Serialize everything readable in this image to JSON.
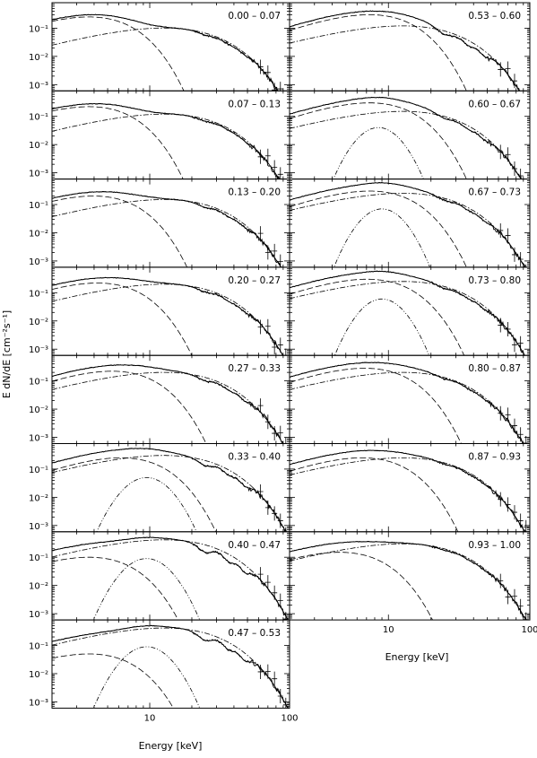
{
  "chart_data": {
    "type": "line",
    "ylabel": "E dN/dE [cm⁻²s⁻¹]",
    "xlabel": "Energy [keV]",
    "xscale": "log",
    "yscale": "log",
    "xlim": [
      2,
      100
    ],
    "ylim": [
      0.0006,
      0.8
    ],
    "x_ticklabels": [
      "10",
      "100"
    ],
    "y_ticklabels": [
      "10⁻³",
      "10⁻²",
      "10⁻¹"
    ],
    "panels": [
      {
        "label": "0.00 – 0.07",
        "bb_kT": 1.3,
        "bb_norm": 0.25,
        "pl_peak": 11,
        "pl_norm": 0.1,
        "gauss": null,
        "cyc": 0.15
      },
      {
        "label": "0.07 – 0.13",
        "bb_kT": 1.3,
        "bb_norm": 0.22,
        "pl_peak": 13,
        "pl_norm": 0.12,
        "gauss": null,
        "cyc": 0.15
      },
      {
        "label": "0.13 – 0.20",
        "bb_kT": 1.4,
        "bb_norm": 0.2,
        "pl_peak": 13,
        "pl_norm": 0.15,
        "gauss": null,
        "cyc": 0.2
      },
      {
        "label": "0.20 – 0.27",
        "bb_kT": 1.5,
        "bb_norm": 0.22,
        "pl_peak": 12,
        "pl_norm": 0.2,
        "gauss": null,
        "cyc": 0.2
      },
      {
        "label": "0.27 – 0.33",
        "bb_kT": 1.9,
        "bb_norm": 0.22,
        "pl_peak": 12,
        "pl_norm": 0.2,
        "gauss": null,
        "cyc": 0.25
      },
      {
        "label": "0.33 – 0.40",
        "bb_kT": 2.2,
        "bb_norm": 0.25,
        "pl_peak": 11,
        "pl_norm": 0.3,
        "gauss": {
          "center": 9.5,
          "sigma": 0.12,
          "norm": 0.05
        },
        "cyc": 0.35
      },
      {
        "label": "0.40 – 0.47",
        "bb_kT": 1.3,
        "bb_norm": 0.1,
        "pl_peak": 10,
        "pl_norm": 0.4,
        "gauss": {
          "center": 9.5,
          "sigma": 0.12,
          "norm": 0.09
        },
        "cyc": 0.45
      },
      {
        "label": "0.47 – 0.53",
        "bb_kT": 1.3,
        "bb_norm": 0.05,
        "pl_peak": 10,
        "pl_norm": 0.4,
        "gauss": {
          "center": 9.5,
          "sigma": 0.12,
          "norm": 0.09
        },
        "cyc": 0.45
      },
      {
        "label": "0.53 – 0.60",
        "bb_kT": 2.6,
        "bb_norm": 0.3,
        "pl_peak": 12,
        "pl_norm": 0.12,
        "gauss": null,
        "cyc": 0.35
      },
      {
        "label": "0.60 – 0.67",
        "bb_kT": 2.6,
        "bb_norm": 0.3,
        "pl_peak": 12,
        "pl_norm": 0.15,
        "gauss": {
          "center": 8.5,
          "sigma": 0.11,
          "norm": 0.04
        },
        "cyc": 0.25
      },
      {
        "label": "0.67 – 0.73",
        "bb_kT": 2.6,
        "bb_norm": 0.3,
        "pl_peak": 12,
        "pl_norm": 0.25,
        "gauss": {
          "center": 9.0,
          "sigma": 0.11,
          "norm": 0.07
        },
        "cyc": 0.2
      },
      {
        "label": "0.73 – 0.80",
        "bb_kT": 2.5,
        "bb_norm": 0.3,
        "pl_peak": 12,
        "pl_norm": 0.25,
        "gauss": {
          "center": 9.0,
          "sigma": 0.11,
          "norm": 0.06
        },
        "cyc": 0.2
      },
      {
        "label": "0.80 – 0.87",
        "bb_kT": 2.4,
        "bb_norm": 0.28,
        "pl_peak": 13,
        "pl_norm": 0.2,
        "gauss": null,
        "cyc": 0.15
      },
      {
        "label": "0.87 – 0.93",
        "bb_kT": 2.3,
        "bb_norm": 0.25,
        "pl_peak": 12,
        "pl_norm": 0.25,
        "gauss": null,
        "cyc": 0.12
      },
      {
        "label": "0.93 – 1.00",
        "bb_kT": 1.6,
        "bb_norm": 0.15,
        "pl_peak": 12,
        "pl_norm": 0.3,
        "gauss": null,
        "cyc": 0.12
      }
    ]
  }
}
